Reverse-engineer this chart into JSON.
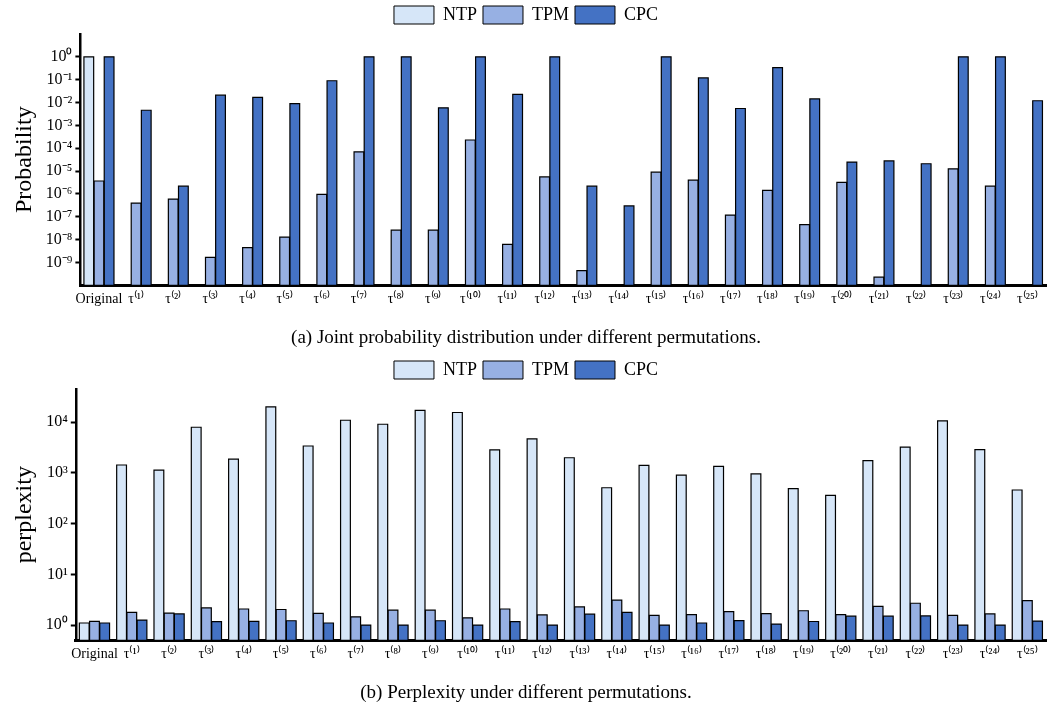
{
  "chart_data": [
    {
      "type": "bar",
      "title": "(a) Joint probability distribution under different permutations.",
      "ylabel": "Probability",
      "log": "y",
      "grid": false,
      "legend": "top",
      "categories": [
        "Original",
        "τ⁽¹⁾",
        "τ⁽²⁾",
        "τ⁽³⁾",
        "τ⁽⁴⁾",
        "τ⁽⁵⁾",
        "τ⁽⁶⁾",
        "τ⁽⁷⁾",
        "τ⁽⁸⁾",
        "τ⁽⁹⁾",
        "τ⁽¹⁰⁾",
        "τ⁽¹¹⁾",
        "τ⁽¹²⁾",
        "τ⁽¹³⁾",
        "τ⁽¹⁴⁾",
        "τ⁽¹⁵⁾",
        "τ⁽¹⁶⁾",
        "τ⁽¹⁷⁾",
        "τ⁽¹⁸⁾",
        "τ⁽¹⁹⁾",
        "τ⁽²⁰⁾",
        "τ⁽²¹⁾",
        "τ⁽²²⁾",
        "τ⁽²³⁾",
        "τ⁽²⁴⁾",
        "τ⁽²⁵⁾"
      ],
      "ylim": [
        1e-10,
        10
      ],
      "yticks": [
        {
          "value": 1e-09,
          "label": "10⁻⁹"
        },
        {
          "value": 1e-08,
          "label": "10⁻⁸"
        },
        {
          "value": 1e-07,
          "label": "10⁻⁷"
        },
        {
          "value": 1e-06,
          "label": "10⁻⁶"
        },
        {
          "value": 1e-05,
          "label": "10⁻⁵"
        },
        {
          "value": 0.0001,
          "label": "10⁻⁴"
        },
        {
          "value": 0.001,
          "label": "10⁻³"
        },
        {
          "value": 0.01,
          "label": "10⁻²"
        },
        {
          "value": 0.1,
          "label": "10⁻¹"
        },
        {
          "value": 1,
          "label": "10⁰"
        }
      ],
      "series": [
        {
          "name": "NTP",
          "color": "#d6e6f8",
          "values": [
            1,
            null,
            null,
            null,
            null,
            null,
            null,
            null,
            null,
            null,
            null,
            null,
            null,
            null,
            null,
            null,
            null,
            null,
            null,
            null,
            null,
            null,
            null,
            null,
            null,
            null
          ]
        },
        {
          "name": "TPM",
          "color": "#97b0e3",
          "values": [
            3.7e-06,
            4e-07,
            6e-07,
            1.7e-09,
            4.5e-09,
            1.3e-08,
            9.6e-07,
            7e-05,
            2.6e-08,
            2.6e-08,
            0.00023,
            6.3e-09,
            5.6e-06,
            4.4e-10,
            null,
            9e-06,
            4e-06,
            1.2e-07,
            1.45e-06,
            4.6e-08,
            3.2e-06,
            2.3e-10,
            null,
            1.26e-05,
            2.2e-06,
            null
          ]
        },
        {
          "name": "CPC",
          "color": "#4472c4",
          "values": [
            1,
            0.0046,
            2.2e-06,
            0.021,
            0.017,
            0.009,
            0.09,
            1,
            1,
            0.0059,
            1,
            0.023,
            1,
            2.2e-06,
            3e-07,
            1,
            0.12,
            0.0055,
            0.34,
            0.0145,
            2.5e-05,
            2.8e-05,
            2.1e-05,
            1,
            1,
            0.012
          ]
        }
      ]
    },
    {
      "type": "bar",
      "title": "(b) Perplexity under different permutations.",
      "ylabel": "perplexity",
      "log": "y",
      "grid": false,
      "legend": "top",
      "categories": [
        "Original",
        "τ⁽¹⁾",
        "τ⁽²⁾",
        "τ⁽³⁾",
        "τ⁽⁴⁾",
        "τ⁽⁵⁾",
        "τ⁽⁶⁾",
        "τ⁽⁷⁾",
        "τ⁽⁸⁾",
        "τ⁽⁹⁾",
        "τ⁽¹⁰⁾",
        "τ⁽¹¹⁾",
        "τ⁽¹²⁾",
        "τ⁽¹³⁾",
        "τ⁽¹⁴⁾",
        "τ⁽¹⁵⁾",
        "τ⁽¹⁶⁾",
        "τ⁽¹⁷⁾",
        "τ⁽¹⁸⁾",
        "τ⁽¹⁹⁾",
        "τ⁽²⁰⁾",
        "τ⁽²¹⁾",
        "τ⁽²²⁾",
        "τ⁽²³⁾",
        "τ⁽²⁴⁾",
        "τ⁽²⁵⁾"
      ],
      "ylim": [
        0.5,
        45000
      ],
      "yticks": [
        {
          "value": 1,
          "label": "10⁰"
        },
        {
          "value": 10,
          "label": "10¹"
        },
        {
          "value": 100,
          "label": "10²"
        },
        {
          "value": 1000,
          "label": "10³"
        },
        {
          "value": 10000,
          "label": "10⁴"
        }
      ],
      "series": [
        {
          "name": "NTP",
          "color": "#d6e6f8",
          "values": [
            1.1,
            1430,
            1135,
            7940,
            1860,
            20000,
            3390,
            10900,
            9100,
            17000,
            15500,
            2850,
            4700,
            1990,
            510,
            1410,
            900,
            1350,
            955,
            490,
            360,
            1740,
            3230,
            10600,
            2880,
            460
          ]
        },
        {
          "name": "TPM",
          "color": "#97b0e3",
          "values": [
            1.19,
            1.78,
            1.73,
            2.18,
            2.08,
            2.03,
            1.71,
            1.46,
            1.97,
            1.97,
            1.39,
            2.08,
            1.59,
            2.28,
            3.12,
            1.55,
            1.61,
            1.84,
            1.69,
            1.92,
            1.61,
            2.34,
            2.7,
            1.55,
            1.66,
            3.03
          ]
        },
        {
          "name": "CPC",
          "color": "#4472c4",
          "values": [
            1.1,
            1.26,
            1.66,
            1.17,
            1.19,
            1.22,
            1.1,
            1,
            1,
            1.22,
            1,
            1.17,
            1,
            1.64,
            1.79,
            1,
            1.1,
            1.23,
            1.05,
            1.18,
            1.5,
            1.5,
            1.52,
            1,
            1,
            1.2
          ]
        }
      ]
    }
  ]
}
